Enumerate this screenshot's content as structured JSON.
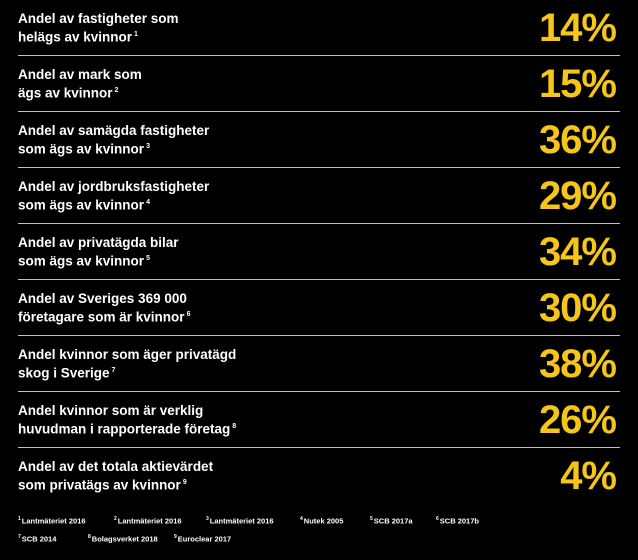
{
  "stats": [
    {
      "line1": "Andel av fastigheter som",
      "line2": "helägs av kvinnor",
      "note": "1",
      "value": "14%"
    },
    {
      "line1": "Andel av mark som",
      "line2": "ägs av kvinnor",
      "note": "2",
      "value": "15%"
    },
    {
      "line1": "Andel av samägda fastigheter",
      "line2": "som ägs av kvinnor",
      "note": "3",
      "value": "36%"
    },
    {
      "line1": "Andel av jordbruksfastigheter",
      "line2": "som ägs av kvinnor",
      "note": "4",
      "value": "29%"
    },
    {
      "line1": "Andel av privatägda bilar",
      "line2": "som ägs av kvinnor",
      "note": "5",
      "value": "34%"
    },
    {
      "line1": "Andel av Sveriges 369 000",
      "line2": "företagare som är kvinnor",
      "note": "6",
      "value": "30%"
    },
    {
      "line1": "Andel kvinnor som äger privatägd",
      "line2": "skog i Sverige",
      "note": "7",
      "value": "38%"
    },
    {
      "line1": "Andel kvinnor som är verklig",
      "line2": "huvudman i rapporterade företag",
      "note": "8",
      "value": "26%"
    },
    {
      "line1": "Andel av det totala aktievärdet",
      "line2": "som privatägs av kvinnor",
      "note": "9",
      "value": "4%"
    }
  ],
  "references": [
    {
      "num": "1",
      "text": "Lantmäteriet 2016"
    },
    {
      "num": "2",
      "text": "Lantmäteriet 2016"
    },
    {
      "num": "3",
      "text": "Lantmäteriet 2016"
    },
    {
      "num": "4",
      "text": "Nutek 2005"
    },
    {
      "num": "5",
      "text": "SCB 2017a"
    },
    {
      "num": "6",
      "text": "SCB 2017b"
    },
    {
      "num": "7",
      "text": "SCB 2014"
    },
    {
      "num": "8",
      "text": "Bolagsverket 2018"
    },
    {
      "num": "9",
      "text": "Euroclear 2017"
    }
  ],
  "colors": {
    "background": "#000000",
    "accent": "#f5c51a",
    "text": "#ffffff"
  }
}
